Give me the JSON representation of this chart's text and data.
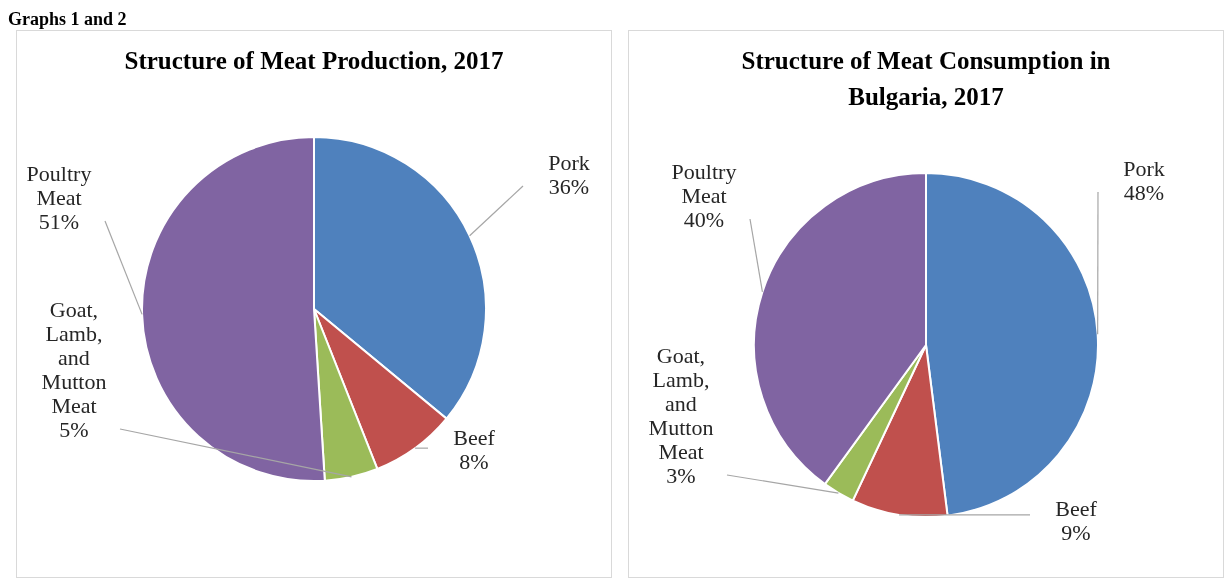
{
  "chart_data": [
    {
      "type": "pie",
      "title": "Structure of Meat Production, 2017",
      "annotations": [
        "Graphs 1 and 2"
      ],
      "categories": [
        "Pork",
        "Beef",
        "Goat, Lamb, and Mutton Meat",
        "Poultry Meat"
      ],
      "values": [
        36,
        8,
        5,
        51
      ],
      "colors": [
        "#4f81bd",
        "#c0504d",
        "#9bbb59",
        "#8064a2"
      ],
      "value_labels": [
        "36%",
        "8%",
        "5%",
        "51%"
      ],
      "legend": false
    },
    {
      "type": "pie",
      "title": "Structure of Meat Consumption in Bulgaria, 2017",
      "categories": [
        "Pork",
        "Beef",
        "Goat, Lamb, and Mutton Meat",
        "Poultry Meat"
      ],
      "values": [
        48,
        9,
        3,
        40
      ],
      "colors": [
        "#4f81bd",
        "#c0504d",
        "#9bbb59",
        "#8064a2"
      ],
      "value_labels": [
        "48%",
        "9%",
        "3%",
        "40%"
      ],
      "legend": false
    }
  ]
}
